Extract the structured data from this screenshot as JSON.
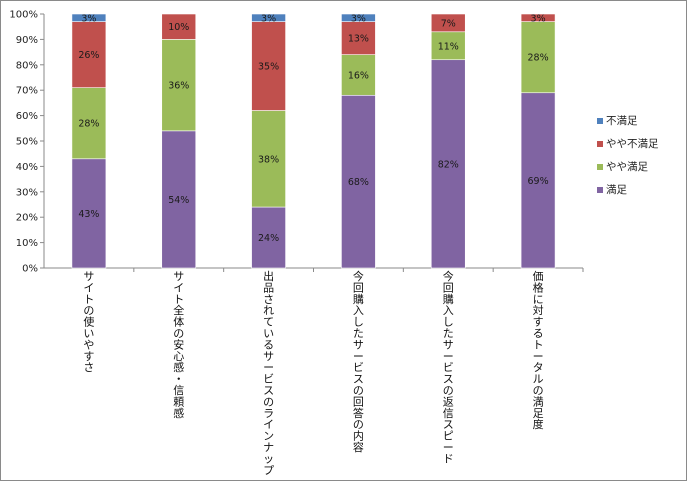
{
  "chart_data": {
    "type": "bar",
    "stacked": true,
    "percent": true,
    "categories": [
      "サイトの使いやすさ",
      "サイト全体の安心感・信頼感",
      "出品されているサービスのラインナップ",
      "今回購入したサービスの回答の内容",
      "今回購入したサービスの返信スピード",
      "価格に対するトータルの満足度"
    ],
    "series": [
      {
        "name": "満足",
        "color": "#8064a2",
        "values": [
          43,
          54,
          24,
          68,
          82,
          69
        ],
        "labels": [
          "43%",
          "54%",
          "24%",
          "68%",
          "82%",
          "69%"
        ]
      },
      {
        "name": "やや満足",
        "color": "#9bbb59",
        "values": [
          28,
          36,
          38,
          16,
          11,
          28
        ],
        "labels": [
          "28%",
          "36%",
          "38%",
          "16%",
          "11%",
          "28%"
        ]
      },
      {
        "name": "やや不満足",
        "color": "#c0504d",
        "values": [
          26,
          10,
          35,
          13,
          7,
          3
        ],
        "labels": [
          "26%",
          "10%",
          "35%",
          "13%",
          "7%",
          "3%"
        ]
      },
      {
        "name": "不満足",
        "color": "#4f81bd",
        "values": [
          3,
          0,
          3,
          3,
          0,
          0
        ],
        "labels": [
          "3%",
          "",
          "3%",
          "3%",
          "",
          ""
        ]
      }
    ],
    "ylim": [
      0,
      100
    ],
    "yticks": [
      "0%",
      "10%",
      "20%",
      "30%",
      "40%",
      "50%",
      "60%",
      "70%",
      "80%",
      "90%",
      "100%"
    ],
    "grid": false,
    "legend_position": "right"
  }
}
